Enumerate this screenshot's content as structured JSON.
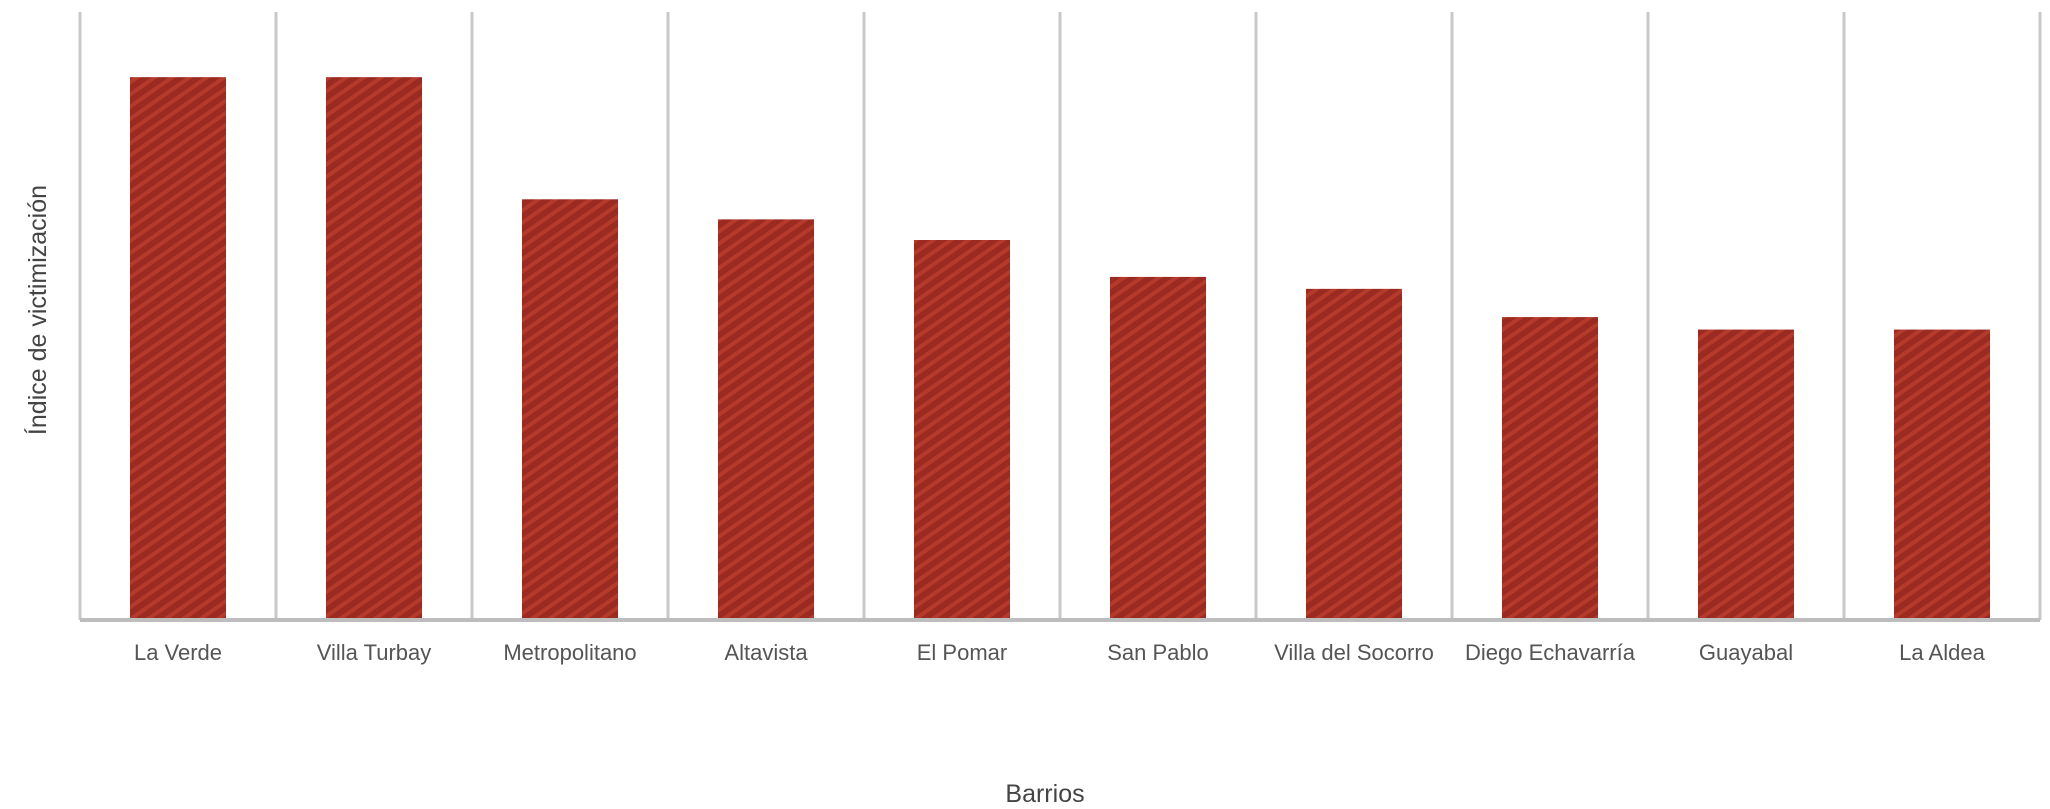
{
  "chart_data": {
    "type": "bar",
    "title": "",
    "xlabel": "Barrios",
    "ylabel": "Índice de victimización",
    "categories": [
      "La Verde",
      "Villa Turbay",
      "Metropolitano",
      "Altavista",
      "El Pomar",
      "San Pablo",
      "Villa del Socorro",
      "Diego Echavarría",
      "Guayabal",
      "La Aldea"
    ],
    "values": [
      100,
      100,
      77.5,
      73.8,
      70,
      63.2,
      61,
      55.8,
      53.5,
      53.5
    ],
    "ylim": [
      0,
      112
    ],
    "grid": "vertical category separators",
    "legend": "none",
    "colors": {
      "bar": "#9b2a20",
      "bar_hatch": "#b43a2c",
      "gridline": "#c8c8c8",
      "axis": "#bdbdbd"
    }
  }
}
